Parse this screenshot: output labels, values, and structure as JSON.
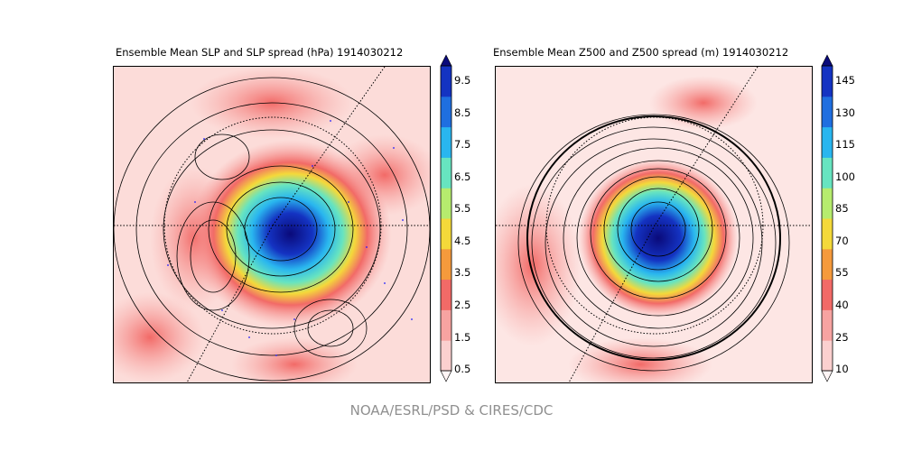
{
  "panels": [
    {
      "title": "Ensemble Mean SLP and SLP spread (hPa) 1914030212",
      "variable": "SLP",
      "unit": "hPa",
      "colorbar_ticks": [
        "0.5",
        "1.5",
        "2.5",
        "3.5",
        "4.5",
        "5.5",
        "6.5",
        "7.5",
        "8.5",
        "9.5"
      ],
      "has_observation_dots": true,
      "observation_dot_color": "#1a1aff"
    },
    {
      "title": "Ensemble Mean Z500 and Z500 spread (m) 1914030212",
      "variable": "Z500",
      "unit": "m",
      "colorbar_ticks": [
        "10",
        "25",
        "40",
        "55",
        "70",
        "85",
        "100",
        "115",
        "130",
        "145"
      ],
      "has_observation_dots": false
    }
  ],
  "colormap": [
    "#fff5f5",
    "#fbd0cf",
    "#f7a3a1",
    "#f26a67",
    "#f59a3c",
    "#f4d93a",
    "#b6ec6e",
    "#67e4c0",
    "#29b6ef",
    "#1f6fe0",
    "#1433c2",
    "#0a0a7a"
  ],
  "map_projection": "north-polar-stereographic",
  "credit": "NOAA/ESRL/PSD & CIRES/CDC"
}
